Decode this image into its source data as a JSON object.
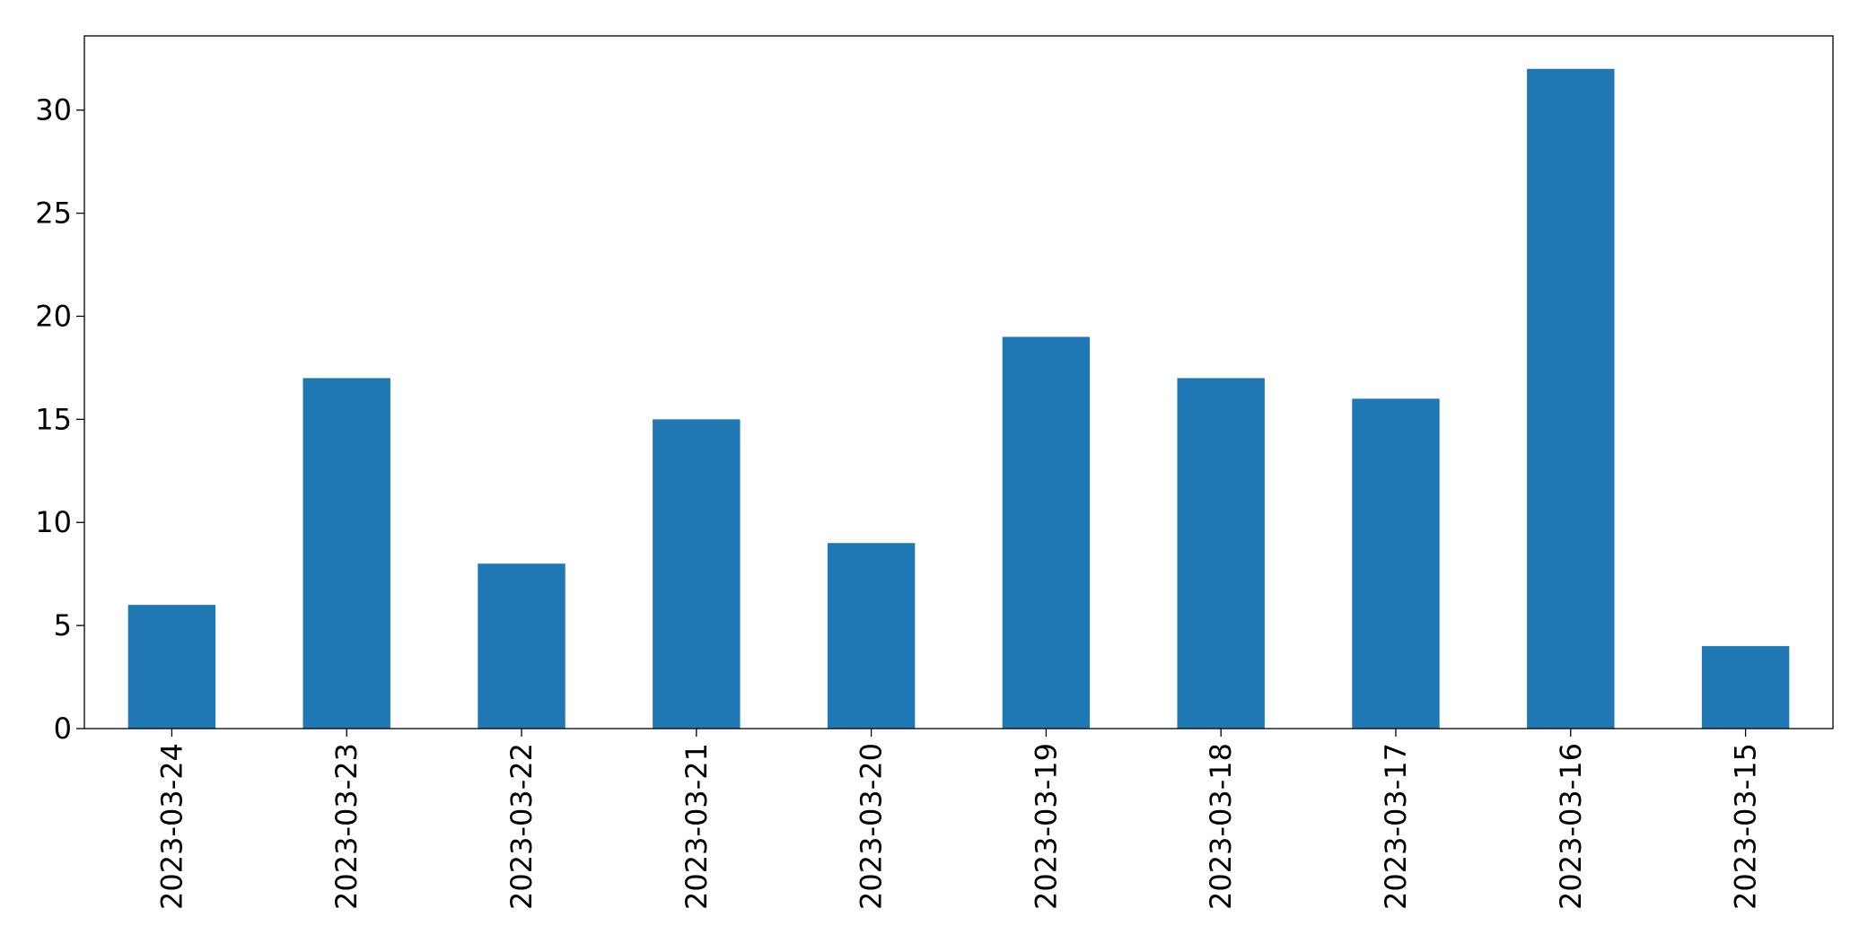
{
  "chart_data": {
    "type": "bar",
    "categories": [
      "2023-03-24",
      "2023-03-23",
      "2023-03-22",
      "2023-03-21",
      "2023-03-20",
      "2023-03-19",
      "2023-03-18",
      "2023-03-17",
      "2023-03-16",
      "2023-03-15"
    ],
    "values": [
      6,
      17,
      8,
      15,
      9,
      19,
      17,
      16,
      32,
      4
    ],
    "color": "#1f77b4",
    "ylim": [
      0,
      33.6
    ],
    "yticks": [
      0,
      5,
      10,
      15,
      20,
      25,
      30
    ],
    "grid": false
  }
}
